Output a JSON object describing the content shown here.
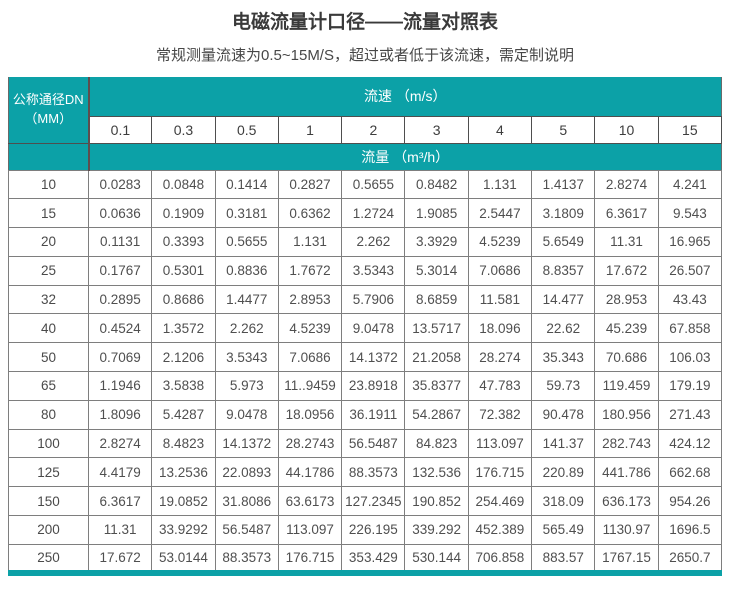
{
  "header": {
    "title": "电磁流量计口径——流量对照表",
    "subtitle": "常规测量流速为0.5~15M/S，超过或者低于该流速，需定制说明"
  },
  "chart_data": {
    "type": "table",
    "title": "电磁流量计口径——流量对照表",
    "corner_header_line1": "公称通径DN",
    "corner_header_line2": "（MM）",
    "col_group_header": "流速 （m/s）",
    "row_group_header": "流量 （m³/h）",
    "velocity_columns": [
      "0.1",
      "0.3",
      "0.5",
      "1",
      "2",
      "3",
      "4",
      "5",
      "10",
      "15"
    ],
    "rows": [
      {
        "dn": "10",
        "values": [
          "0.0283",
          "0.0848",
          "0.1414",
          "0.2827",
          "0.5655",
          "0.8482",
          "1.131",
          "1.4137",
          "2.8274",
          "4.241"
        ]
      },
      {
        "dn": "15",
        "values": [
          "0.0636",
          "0.1909",
          "0.3181",
          "0.6362",
          "1.2724",
          "1.9085",
          "2.5447",
          "3.1809",
          "6.3617",
          "9.543"
        ]
      },
      {
        "dn": "20",
        "values": [
          "0.1131",
          "0.3393",
          "0.5655",
          "1.131",
          "2.262",
          "3.3929",
          "4.5239",
          "5.6549",
          "11.31",
          "16.965"
        ]
      },
      {
        "dn": "25",
        "values": [
          "0.1767",
          "0.5301",
          "0.8836",
          "1.7672",
          "3.5343",
          "5.3014",
          "7.0686",
          "8.8357",
          "17.672",
          "26.507"
        ]
      },
      {
        "dn": "32",
        "values": [
          "0.2895",
          "0.8686",
          "1.4477",
          "2.8953",
          "5.7906",
          "8.6859",
          "11.581",
          "14.477",
          "28.953",
          "43.43"
        ]
      },
      {
        "dn": "40",
        "values": [
          "0.4524",
          "1.3572",
          "2.262",
          "4.5239",
          "9.0478",
          "13.5717",
          "18.096",
          "22.62",
          "45.239",
          "67.858"
        ]
      },
      {
        "dn": "50",
        "values": [
          "0.7069",
          "2.1206",
          "3.5343",
          "7.0686",
          "14.1372",
          "21.2058",
          "28.274",
          "35.343",
          "70.686",
          "106.03"
        ]
      },
      {
        "dn": "65",
        "values": [
          "1.1946",
          "3.5838",
          "5.973",
          "11..9459",
          "23.8918",
          "35.8377",
          "47.783",
          "59.73",
          "119.459",
          "179.19"
        ]
      },
      {
        "dn": "80",
        "values": [
          "1.8096",
          "5.4287",
          "9.0478",
          "18.0956",
          "36.1911",
          "54.2867",
          "72.382",
          "90.478",
          "180.956",
          "271.43"
        ]
      },
      {
        "dn": "100",
        "values": [
          "2.8274",
          "8.4823",
          "14.1372",
          "28.2743",
          "56.5487",
          "84.823",
          "113.097",
          "141.37",
          "282.743",
          "424.12"
        ]
      },
      {
        "dn": "125",
        "values": [
          "4.4179",
          "13.2536",
          "22.0893",
          "44.1786",
          "88.3573",
          "132.536",
          "176.715",
          "220.89",
          "441.786",
          "662.68"
        ]
      },
      {
        "dn": "150",
        "values": [
          "6.3617",
          "19.0852",
          "31.8086",
          "63.6173",
          "127.2345",
          "190.852",
          "254.469",
          "318.09",
          "636.173",
          "954.26"
        ]
      },
      {
        "dn": "200",
        "values": [
          "11.31",
          "33.9292",
          "56.5487",
          "113.097",
          "226.195",
          "339.292",
          "452.389",
          "565.49",
          "1130.97",
          "1696.5"
        ]
      },
      {
        "dn": "250",
        "values": [
          "17.672",
          "53.0144",
          "88.3573",
          "176.715",
          "353.429",
          "530.144",
          "706.858",
          "883.57",
          "1767.15",
          "2650.7"
        ]
      }
    ]
  },
  "colors": {
    "teal": "#0ca1a7",
    "divider": "#5f4d4d",
    "grid": "#7e7e7e",
    "velborder": "#4e4e4e",
    "text": "#4f4f4f"
  }
}
